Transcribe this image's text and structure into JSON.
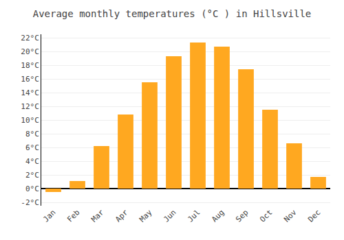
{
  "chart_data": {
    "type": "bar",
    "title": "Average monthly temperatures (°C ) in Hillsville",
    "categories": [
      "Jan",
      "Feb",
      "Mar",
      "Apr",
      "May",
      "Jun",
      "Jul",
      "Aug",
      "Sep",
      "Oct",
      "Nov",
      "Dec"
    ],
    "values": [
      -0.5,
      1.1,
      6.2,
      10.8,
      15.5,
      19.3,
      21.3,
      20.7,
      17.4,
      11.5,
      6.6,
      1.7
    ],
    "color": "#FFA820",
    "ylim": [
      -2.5,
      22.5
    ],
    "yticks": [
      {
        "value": -2,
        "label": "-2°C"
      },
      {
        "value": 0,
        "label": "0°C"
      },
      {
        "value": 2,
        "label": "2°C"
      },
      {
        "value": 4,
        "label": "4°C"
      },
      {
        "value": 6,
        "label": "6°C"
      },
      {
        "value": 8,
        "label": "8°C"
      },
      {
        "value": 10,
        "label": "10°C"
      },
      {
        "value": 12,
        "label": "12°C"
      },
      {
        "value": 14,
        "label": "14°C"
      },
      {
        "value": 16,
        "label": "16°C"
      },
      {
        "value": 18,
        "label": "18°C"
      },
      {
        "value": 20,
        "label": "20°C"
      },
      {
        "value": 22,
        "label": "22°C"
      }
    ],
    "grid": true
  }
}
